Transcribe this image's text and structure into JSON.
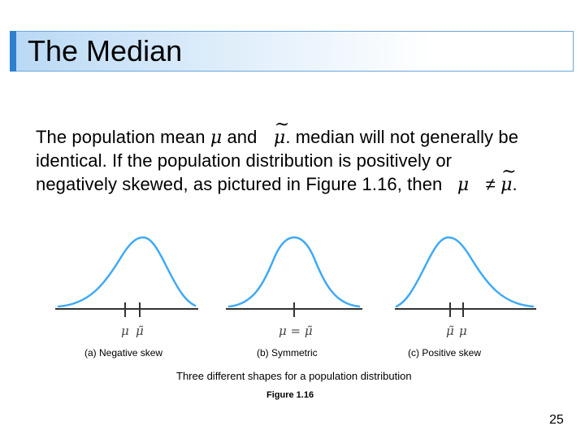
{
  "slide": {
    "title": "The Median",
    "paragraph": {
      "line1_a": "The population mean",
      "line1_b": "and",
      "line1_c": "median will not generally be",
      "line2": "identical. If the population distribution is positively or",
      "line3": "negatively skewed, as pictured in Figure 1.16, then",
      "line3_end": "."
    },
    "symbols": {
      "mu": "μ",
      "tilde": "~",
      "dot": ".",
      "neq": "≠",
      "eq": "="
    },
    "figure": {
      "panels": [
        {
          "caption": "(a) Negative skew",
          "marker_left": "μ",
          "marker_right": "μ̃"
        },
        {
          "caption": "(b) Symmetric",
          "marker_center": "μ = μ̃"
        },
        {
          "caption": "(c) Positive skew",
          "marker_left": "μ̃",
          "marker_right": "μ"
        }
      ],
      "description": "Three different shapes for a population distribution",
      "label": "Figure 1.16"
    },
    "page_number": "25",
    "colors": {
      "curve": "#3fa9f5",
      "title_accent": "#2f7fcf",
      "title_border": "#6aa6dc",
      "axis": "#333333"
    }
  }
}
